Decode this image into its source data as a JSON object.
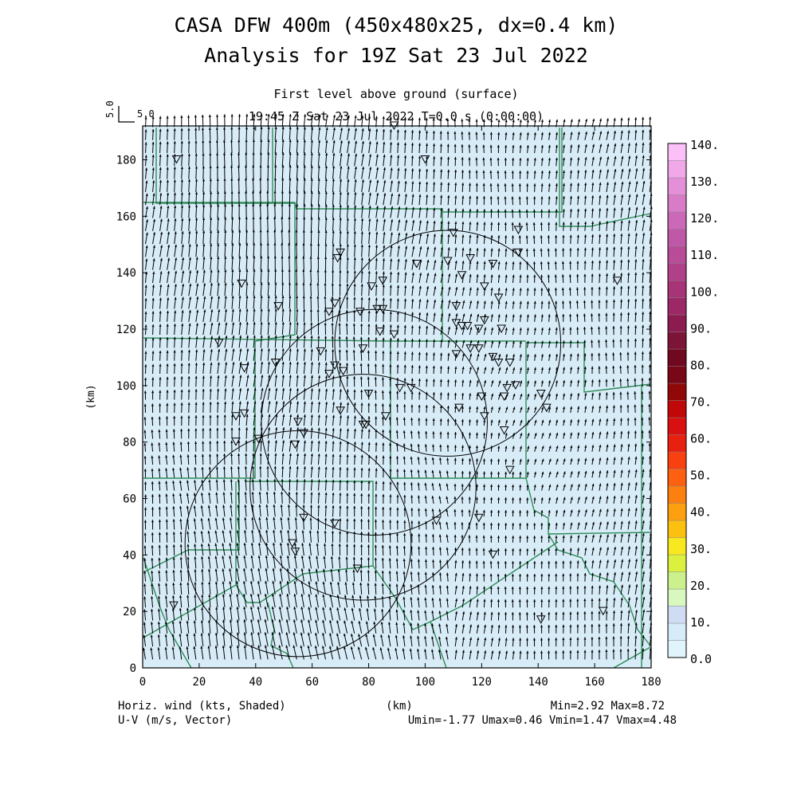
{
  "header": {
    "title_line1": "CASA DFW 400m (450x480x25, dx=0.4 km)",
    "title_line2": "Analysis for 19Z Sat 23 Jul 2022",
    "level": "First level above ground (surface)",
    "time": "19:45 Z Sat 23 Jul 2022     T=0.0 s (0:00:00)"
  },
  "reference_vector": {
    "label_vertical": "5.0",
    "label": "5.0"
  },
  "footer": {
    "left_line1": "Horiz. wind (kts, Shaded)",
    "left_line2": "U-V (m/s, Vector)",
    "center": "(km)",
    "right_line1": "Min=2.92 Max=8.72",
    "right_line2": "Umin=-1.77 Umax=0.46 Vmin=1.47 Vmax=4.48"
  },
  "colors": {
    "field_fill": "#d8ecf8",
    "boundary": "#2e8b57",
    "vector": "#000000",
    "radar_ring": "#000000"
  },
  "chart_data": {
    "type": "heatmap",
    "ylabel": "(km)",
    "xlabel": "(km)",
    "xlim": [
      0,
      180
    ],
    "ylim": [
      0,
      192
    ],
    "x_ticks": [
      0,
      20,
      40,
      60,
      80,
      100,
      120,
      140,
      160,
      180
    ],
    "y_ticks": [
      0,
      20,
      40,
      60,
      80,
      100,
      120,
      140,
      160,
      180
    ],
    "field_units": "kts",
    "field_min": 2.92,
    "field_max": 8.72,
    "u_min": -1.77,
    "u_max": 0.46,
    "v_min": 1.47,
    "v_max": 4.48,
    "colorbar": {
      "levels": [
        "0.0",
        "10.",
        "20.",
        "30.",
        "40.",
        "50.",
        "60.",
        "70.",
        "80.",
        "90.",
        "100.",
        "110.",
        "120.",
        "130.",
        "140."
      ],
      "colors": [
        "#e0f4fc",
        "#d6ecf8",
        "#cfdcf4",
        "#d8f8c0",
        "#ccf08c",
        "#dcf040",
        "#f8e820",
        "#fcc010",
        "#fca010",
        "#fc8010",
        "#fc6010",
        "#f84010",
        "#e82010",
        "#d81010",
        "#c00808",
        "#900808",
        "#780818",
        "#700820",
        "#7c1438",
        "#8c1c50",
        "#9c2868",
        "#a83478",
        "#b04088",
        "#b84c98",
        "#c058a8",
        "#cc68b8",
        "#d87cc8",
        "#e490d8",
        "#f0a8e8",
        "#fcc0f8"
      ]
    },
    "radar_rings": [
      {
        "center_km": [
          55,
          44
        ],
        "radius_km": 40
      },
      {
        "center_km": [
          78,
          64
        ],
        "radius_km": 40
      },
      {
        "center_km": [
          82,
          87
        ],
        "radius_km": 40
      },
      {
        "center_km": [
          108,
          115
        ],
        "radius_km": 40
      }
    ],
    "station_markers_km": [
      [
        12,
        180
      ],
      [
        100,
        180
      ],
      [
        89,
        192
      ],
      [
        133,
        155
      ],
      [
        110,
        154
      ],
      [
        116,
        145
      ],
      [
        133,
        147
      ],
      [
        108,
        144
      ],
      [
        124,
        143
      ],
      [
        97,
        143
      ],
      [
        70,
        147
      ],
      [
        69,
        145
      ],
      [
        35,
        136
      ],
      [
        81,
        135
      ],
      [
        85,
        137
      ],
      [
        113,
        139
      ],
      [
        121,
        135
      ],
      [
        126,
        131
      ],
      [
        168,
        137
      ],
      [
        48,
        128
      ],
      [
        68,
        129
      ],
      [
        66,
        126
      ],
      [
        77,
        126
      ],
      [
        83,
        127
      ],
      [
        85,
        127
      ],
      [
        111,
        128
      ],
      [
        111,
        122
      ],
      [
        113,
        121
      ],
      [
        115,
        121
      ],
      [
        119,
        120
      ],
      [
        121,
        123
      ],
      [
        127,
        120
      ],
      [
        84,
        119
      ],
      [
        89,
        118
      ],
      [
        63,
        112
      ],
      [
        78,
        113
      ],
      [
        111,
        111
      ],
      [
        116,
        113
      ],
      [
        119,
        113
      ],
      [
        124,
        110
      ],
      [
        27,
        115
      ],
      [
        36,
        106
      ],
      [
        68,
        107
      ],
      [
        47,
        108
      ],
      [
        130,
        108
      ],
      [
        126,
        108
      ],
      [
        71,
        105
      ],
      [
        66,
        104
      ],
      [
        129,
        99
      ],
      [
        132,
        100
      ],
      [
        141,
        97
      ],
      [
        128,
        96
      ],
      [
        80,
        97
      ],
      [
        91,
        99
      ],
      [
        95,
        99
      ],
      [
        120,
        96
      ],
      [
        112,
        92
      ],
      [
        143,
        92
      ],
      [
        33,
        89
      ],
      [
        36,
        90
      ],
      [
        70,
        91
      ],
      [
        86,
        89
      ],
      [
        78,
        86
      ],
      [
        79,
        86
      ],
      [
        121,
        89
      ],
      [
        128,
        84
      ],
      [
        55,
        87
      ],
      [
        57,
        83
      ],
      [
        54,
        79
      ],
      [
        41,
        81
      ],
      [
        33,
        80
      ],
      [
        130,
        70
      ],
      [
        119,
        53
      ],
      [
        104,
        52
      ],
      [
        68,
        51
      ],
      [
        57,
        53
      ],
      [
        124,
        40
      ],
      [
        76,
        35
      ],
      [
        53,
        44
      ],
      [
        54,
        41
      ],
      [
        11,
        22
      ],
      [
        141,
        17
      ],
      [
        163,
        20
      ]
    ]
  }
}
